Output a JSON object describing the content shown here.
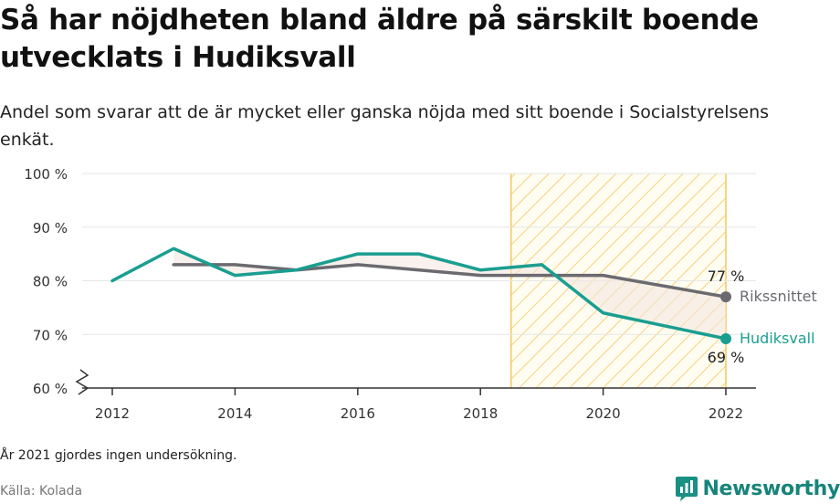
{
  "title": "Så har nöjdheten bland äldre på särskilt boende utvecklats i Hudiksvall",
  "subtitle": "Andel som svarar att de är mycket eller ganska nöjda med sitt boende i Socialstyrelsens enkät.",
  "note": "År 2021 gjordes ingen undersökning.",
  "source": "Källa: Kolada",
  "brand": {
    "name": "Newsworthy",
    "color": "#16847a"
  },
  "chart_data": {
    "type": "line",
    "ylim": [
      60,
      100
    ],
    "yticks": [
      60,
      70,
      80,
      90,
      100
    ],
    "ytick_labels": [
      "60 %",
      "70 %",
      "80 %",
      "90 %",
      "100 %"
    ],
    "xlim": [
      2011.7,
      2022.5
    ],
    "xticks": [
      2012,
      2014,
      2016,
      2018,
      2020,
      2022
    ],
    "xtick_labels": [
      "2012",
      "2014",
      "2016",
      "2018",
      "2020",
      "2022"
    ],
    "axis_break": true,
    "grid": true,
    "highlight_range": [
      2018.5,
      2022
    ],
    "series": [
      {
        "name": "Rikssnittet",
        "color": "#6b6a70",
        "x": [
          2013,
          2014,
          2015,
          2016,
          2017,
          2018,
          2019,
          2020,
          2022
        ],
        "y": [
          83,
          83,
          82,
          83,
          82,
          81,
          81,
          81,
          77
        ],
        "end_label": "77 %"
      },
      {
        "name": "Hudiksvall",
        "color": "#1a9e90",
        "x": [
          2012,
          2013,
          2014,
          2015,
          2016,
          2017,
          2018,
          2019,
          2020,
          2022
        ],
        "y": [
          80,
          86,
          81,
          82,
          85,
          85,
          82,
          83,
          74,
          69.2
        ],
        "end_label": "69 %"
      }
    ]
  }
}
